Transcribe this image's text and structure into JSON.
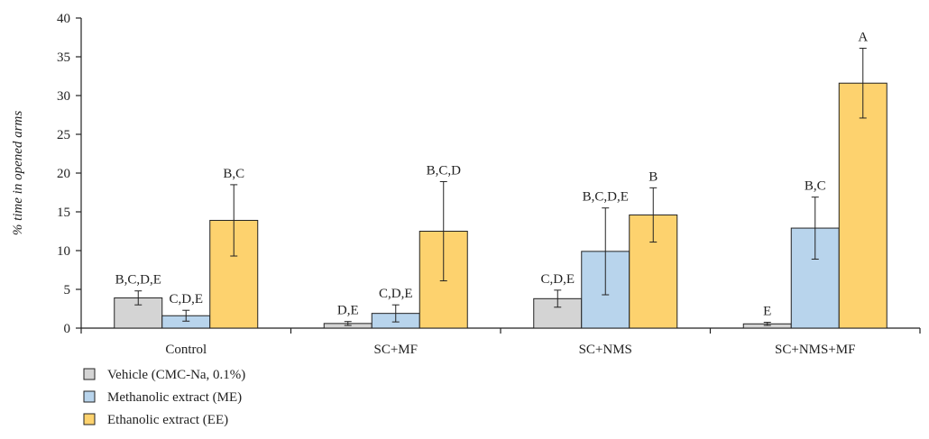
{
  "chart_data": {
    "type": "bar",
    "title": "",
    "xlabel": "",
    "ylabel": "% time in opened arms",
    "ylim": [
      0,
      40
    ],
    "yticks": [
      0,
      5,
      10,
      15,
      20,
      25,
      30,
      35,
      40
    ],
    "grid": false,
    "legend_position": "bottom-left",
    "categories": [
      "Control",
      "SC+MF",
      "SC+NMS",
      "SC+NMS+MF"
    ],
    "series": [
      {
        "name": "Vehicle (CMC-Na, 0.1%)",
        "color": "#d4d4d4",
        "values": [
          3.9,
          0.6,
          3.8,
          0.55
        ],
        "errors": [
          0.9,
          0.25,
          1.1,
          0.2
        ],
        "labels": [
          "B,C,D,E",
          "D,E",
          "C,D,E",
          "E"
        ]
      },
      {
        "name": "Methanolic extract (ME)",
        "color": "#b8d4ec",
        "values": [
          1.6,
          1.9,
          9.9,
          12.9
        ],
        "errors": [
          0.7,
          1.1,
          5.6,
          4.0
        ],
        "labels": [
          "C,D,E",
          "C,D,E",
          "B,C,D,E",
          "B,C"
        ]
      },
      {
        "name": "Ethanolic extract (EE)",
        "color": "#fdd26e",
        "values": [
          13.9,
          12.5,
          14.6,
          31.6
        ],
        "errors": [
          4.6,
          6.4,
          3.5,
          4.5
        ],
        "labels": [
          "B,C",
          "B,C,D",
          "B",
          "A"
        ]
      }
    ]
  }
}
